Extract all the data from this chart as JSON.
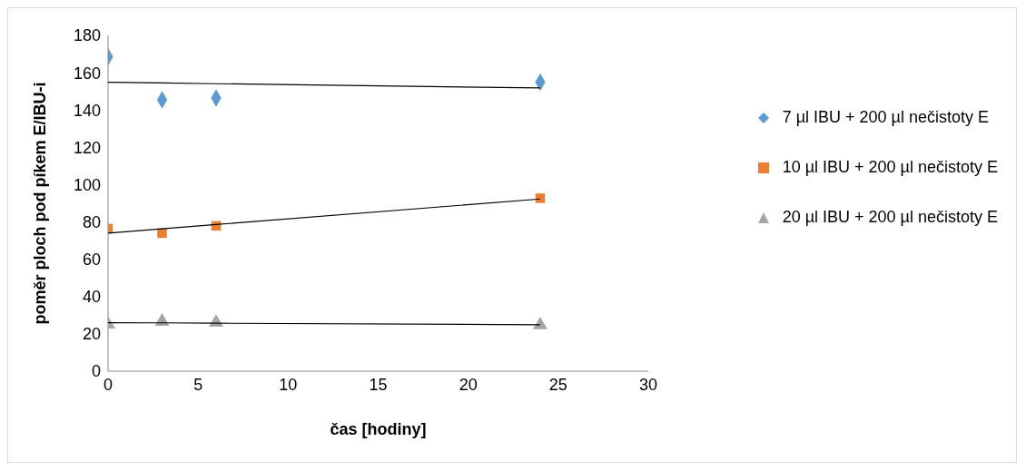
{
  "chart_data": {
    "type": "scatter",
    "xlabel": "čas [hodiny]",
    "ylabel": "poměr ploch pod píkem E/IBU-i",
    "x": [
      0,
      3,
      6,
      24
    ],
    "series": [
      {
        "name": "7 µl IBU + 200 µl nečistoty E",
        "color": "#5b9bd5",
        "marker": "diamond",
        "values": [
          168.6,
          145.5,
          146.4,
          154.9
        ]
      },
      {
        "name": "10 µl IBU + 200 µl nečistoty E",
        "color": "#ed7d31",
        "marker": "square",
        "values": [
          76.4,
          74,
          77.9,
          92.7
        ]
      },
      {
        "name": "20 µl IBU + 200 µl nečistoty E",
        "color": "#a5a5a5",
        "marker": "triangle",
        "values": [
          25.1,
          26.6,
          26.1,
          24.7
        ]
      },
      {
        "type": "line",
        "color": "#000000",
        "marker": "none",
        "values": [
          154.9,
          154.5,
          154.1,
          151.8
        ]
      },
      {
        "type": "line",
        "color": "#000000",
        "marker": "none",
        "values": [
          74,
          76.3,
          78.6,
          92.3
        ]
      },
      {
        "type": "line",
        "color": "#000000",
        "marker": "none",
        "values": [
          26,
          25.9,
          25.7,
          24.9
        ]
      }
    ],
    "xlim": [
      0,
      30
    ],
    "xticks": [
      0,
      5,
      10,
      15,
      20,
      25,
      30
    ],
    "ylim": [
      0,
      180
    ],
    "yticks": [
      0,
      20,
      40,
      60,
      80,
      100,
      120,
      140,
      160,
      180
    ],
    "grid": false,
    "legend": "right"
  }
}
